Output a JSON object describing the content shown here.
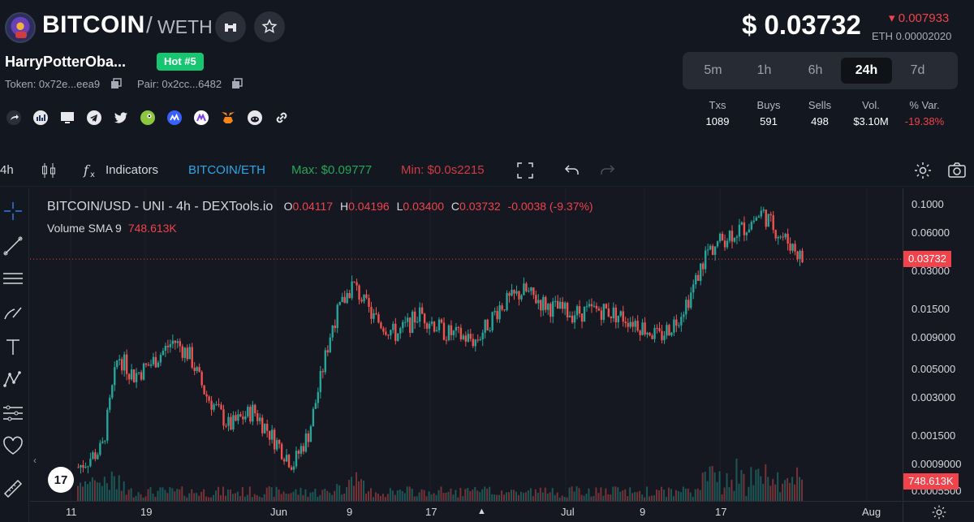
{
  "token": {
    "symbol": "BITCOIN",
    "separator": "/",
    "quote": "WETH",
    "full_name": "HarryPotterOba...",
    "hot_badge": "Hot #5",
    "token_address": "Token: 0x72e...eea9",
    "pair_address": "Pair: 0x2cc...6482"
  },
  "header_buttons": {
    "binoculars": "binoculars-icon",
    "favorite": "star-icon"
  },
  "social_icons": [
    "share-icon",
    "etherscan-icon",
    "website-icon",
    "telegram-icon",
    "twitter-icon",
    "coingecko-icon",
    "coinmarketcap-icon",
    "blockfolio-icon",
    "metamask-icon",
    "reddit-icon",
    "link-icon"
  ],
  "price": {
    "usd": "$ 0.03732",
    "change": "0.007933",
    "eth": "ETH 0.00002020"
  },
  "timeframes": [
    "5m",
    "1h",
    "6h",
    "24h",
    "7d"
  ],
  "active_timeframe": "24h",
  "stats": [
    {
      "label": "Txs",
      "value": "1089"
    },
    {
      "label": "Buys",
      "value": "591"
    },
    {
      "label": "Sells",
      "value": "498"
    },
    {
      "label": "Vol.",
      "value": "$3.10M"
    },
    {
      "label": "% Var.",
      "value": "-19.38%"
    }
  ],
  "toolbar": {
    "interval": "4h",
    "indicators": "Indicators",
    "pair": "BITCOIN/ETH",
    "max": "Max: $0.09777",
    "min": "Min: $0.0s2215"
  },
  "colors": {
    "up": "#26a69a",
    "down": "#ef5350",
    "accent_green": "#17c671",
    "accent_red": "#f0434c",
    "pair_blue": "#2ea6e6"
  },
  "chart_data": {
    "type": "candlestick",
    "title": "BITCOIN/USD - UNI - 4h - DEXTools.io",
    "ohlc_label": {
      "o": "0.04117",
      "h": "0.04196",
      "l": "0.03400",
      "c": "0.03732",
      "chg": "-0.0038 (-9.37%)"
    },
    "volume_indicator": {
      "name": "Volume SMA 9",
      "value": "748.613K"
    },
    "y_scale": "log",
    "ylim": [
      0.00055,
      0.12
    ],
    "y_ticks": [
      "0.1000",
      "0.06000",
      "0.03000",
      "0.01500",
      "0.009000",
      "0.005000",
      "0.003000",
      "0.001500",
      "0.0009000",
      "0.0005500"
    ],
    "last_price_label": "0.03732",
    "volume_label": "748.613K",
    "x_ticks": [
      "11",
      "19",
      "Jun",
      "9",
      "17",
      "Jul",
      "9",
      "17",
      "Aug"
    ],
    "price_path": [
      {
        "t": 0.0,
        "p": 0.00085
      },
      {
        "t": 0.03,
        "p": 0.0012
      },
      {
        "t": 0.05,
        "p": 0.0065
      },
      {
        "t": 0.07,
        "p": 0.0045
      },
      {
        "t": 0.09,
        "p": 0.0055
      },
      {
        "t": 0.12,
        "p": 0.0085
      },
      {
        "t": 0.14,
        "p": 0.0065
      },
      {
        "t": 0.16,
        "p": 0.0032
      },
      {
        "t": 0.19,
        "p": 0.0018
      },
      {
        "t": 0.22,
        "p": 0.0024
      },
      {
        "t": 0.24,
        "p": 0.0016
      },
      {
        "t": 0.27,
        "p": 0.0009
      },
      {
        "t": 0.29,
        "p": 0.0016
      },
      {
        "t": 0.32,
        "p": 0.012
      },
      {
        "t": 0.345,
        "p": 0.024
      },
      {
        "t": 0.37,
        "p": 0.013
      },
      {
        "t": 0.4,
        "p": 0.0095
      },
      {
        "t": 0.43,
        "p": 0.014
      },
      {
        "t": 0.46,
        "p": 0.01
      },
      {
        "t": 0.5,
        "p": 0.0085
      },
      {
        "t": 0.53,
        "p": 0.016
      },
      {
        "t": 0.56,
        "p": 0.021
      },
      {
        "t": 0.59,
        "p": 0.016
      },
      {
        "t": 0.62,
        "p": 0.014
      },
      {
        "t": 0.66,
        "p": 0.015
      },
      {
        "t": 0.7,
        "p": 0.012
      },
      {
        "t": 0.73,
        "p": 0.009
      },
      {
        "t": 0.75,
        "p": 0.012
      },
      {
        "t": 0.77,
        "p": 0.02
      },
      {
        "t": 0.79,
        "p": 0.043
      },
      {
        "t": 0.82,
        "p": 0.06
      },
      {
        "t": 0.84,
        "p": 0.068
      },
      {
        "t": 0.86,
        "p": 0.088
      },
      {
        "t": 0.88,
        "p": 0.06
      },
      {
        "t": 0.9,
        "p": 0.046
      },
      {
        "t": 0.91,
        "p": 0.037
      }
    ]
  }
}
